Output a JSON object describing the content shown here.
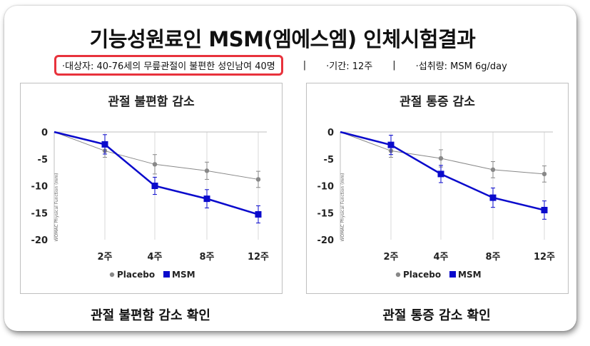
{
  "header": {
    "title": "기능성원료인 MSM(엠에스엠) 인체시험결과",
    "subjects": "·대상자: 40-76세의 무릎관절이 불편한 성인남여 40명",
    "separator": "|",
    "period": "·기간: 12주",
    "intake": "·섭취량: MSM 6g/day"
  },
  "captions": [
    "관절 불편함 감소 확인",
    "관절 통증 감소 확인"
  ],
  "colors": {
    "placebo": "#888888",
    "msm": "#0a0acc",
    "highlight": "#e8323c"
  },
  "chart_data": [
    {
      "type": "line",
      "title": "관절 불편함 감소",
      "ylabel": "WOMAC Physical Function (mm)",
      "x_ticks": [
        "2주",
        "4주",
        "8주",
        "12주"
      ],
      "x": [
        0,
        2,
        4,
        8,
        12
      ],
      "ylim": [
        -20,
        0
      ],
      "y_ticks": [
        "0",
        "-5",
        "-10",
        "-15",
        "-20"
      ],
      "grid": "vertical",
      "legend": "bottom-center",
      "series": [
        {
          "name": "Placebo",
          "values": [
            0,
            -3.5,
            -6.0,
            -7.2,
            -8.8
          ],
          "errors": [
            0,
            1.2,
            1.8,
            1.6,
            1.5
          ]
        },
        {
          "name": "MSM",
          "values": [
            0,
            -2.3,
            -10.0,
            -12.4,
            -15.3
          ],
          "errors": [
            0,
            1.8,
            1.6,
            1.7,
            1.6
          ]
        }
      ]
    },
    {
      "type": "line",
      "title": "관절 통증 감소",
      "ylabel": "WOMAC Physical Function (mm)",
      "x_ticks": [
        "2주",
        "4주",
        "8주",
        "12주"
      ],
      "x": [
        0,
        2,
        4,
        8,
        12
      ],
      "ylim": [
        -20,
        0
      ],
      "y_ticks": [
        "0",
        "-5",
        "-10",
        "-15",
        "-20"
      ],
      "grid": "vertical",
      "legend": "bottom-center",
      "series": [
        {
          "name": "Placebo",
          "values": [
            0,
            -3.5,
            -4.9,
            -7.0,
            -7.8
          ],
          "errors": [
            0,
            1.2,
            1.6,
            1.5,
            1.5
          ]
        },
        {
          "name": "MSM",
          "values": [
            0,
            -2.4,
            -7.8,
            -12.2,
            -14.5
          ],
          "errors": [
            0,
            1.8,
            1.6,
            1.8,
            1.7
          ]
        }
      ]
    }
  ]
}
